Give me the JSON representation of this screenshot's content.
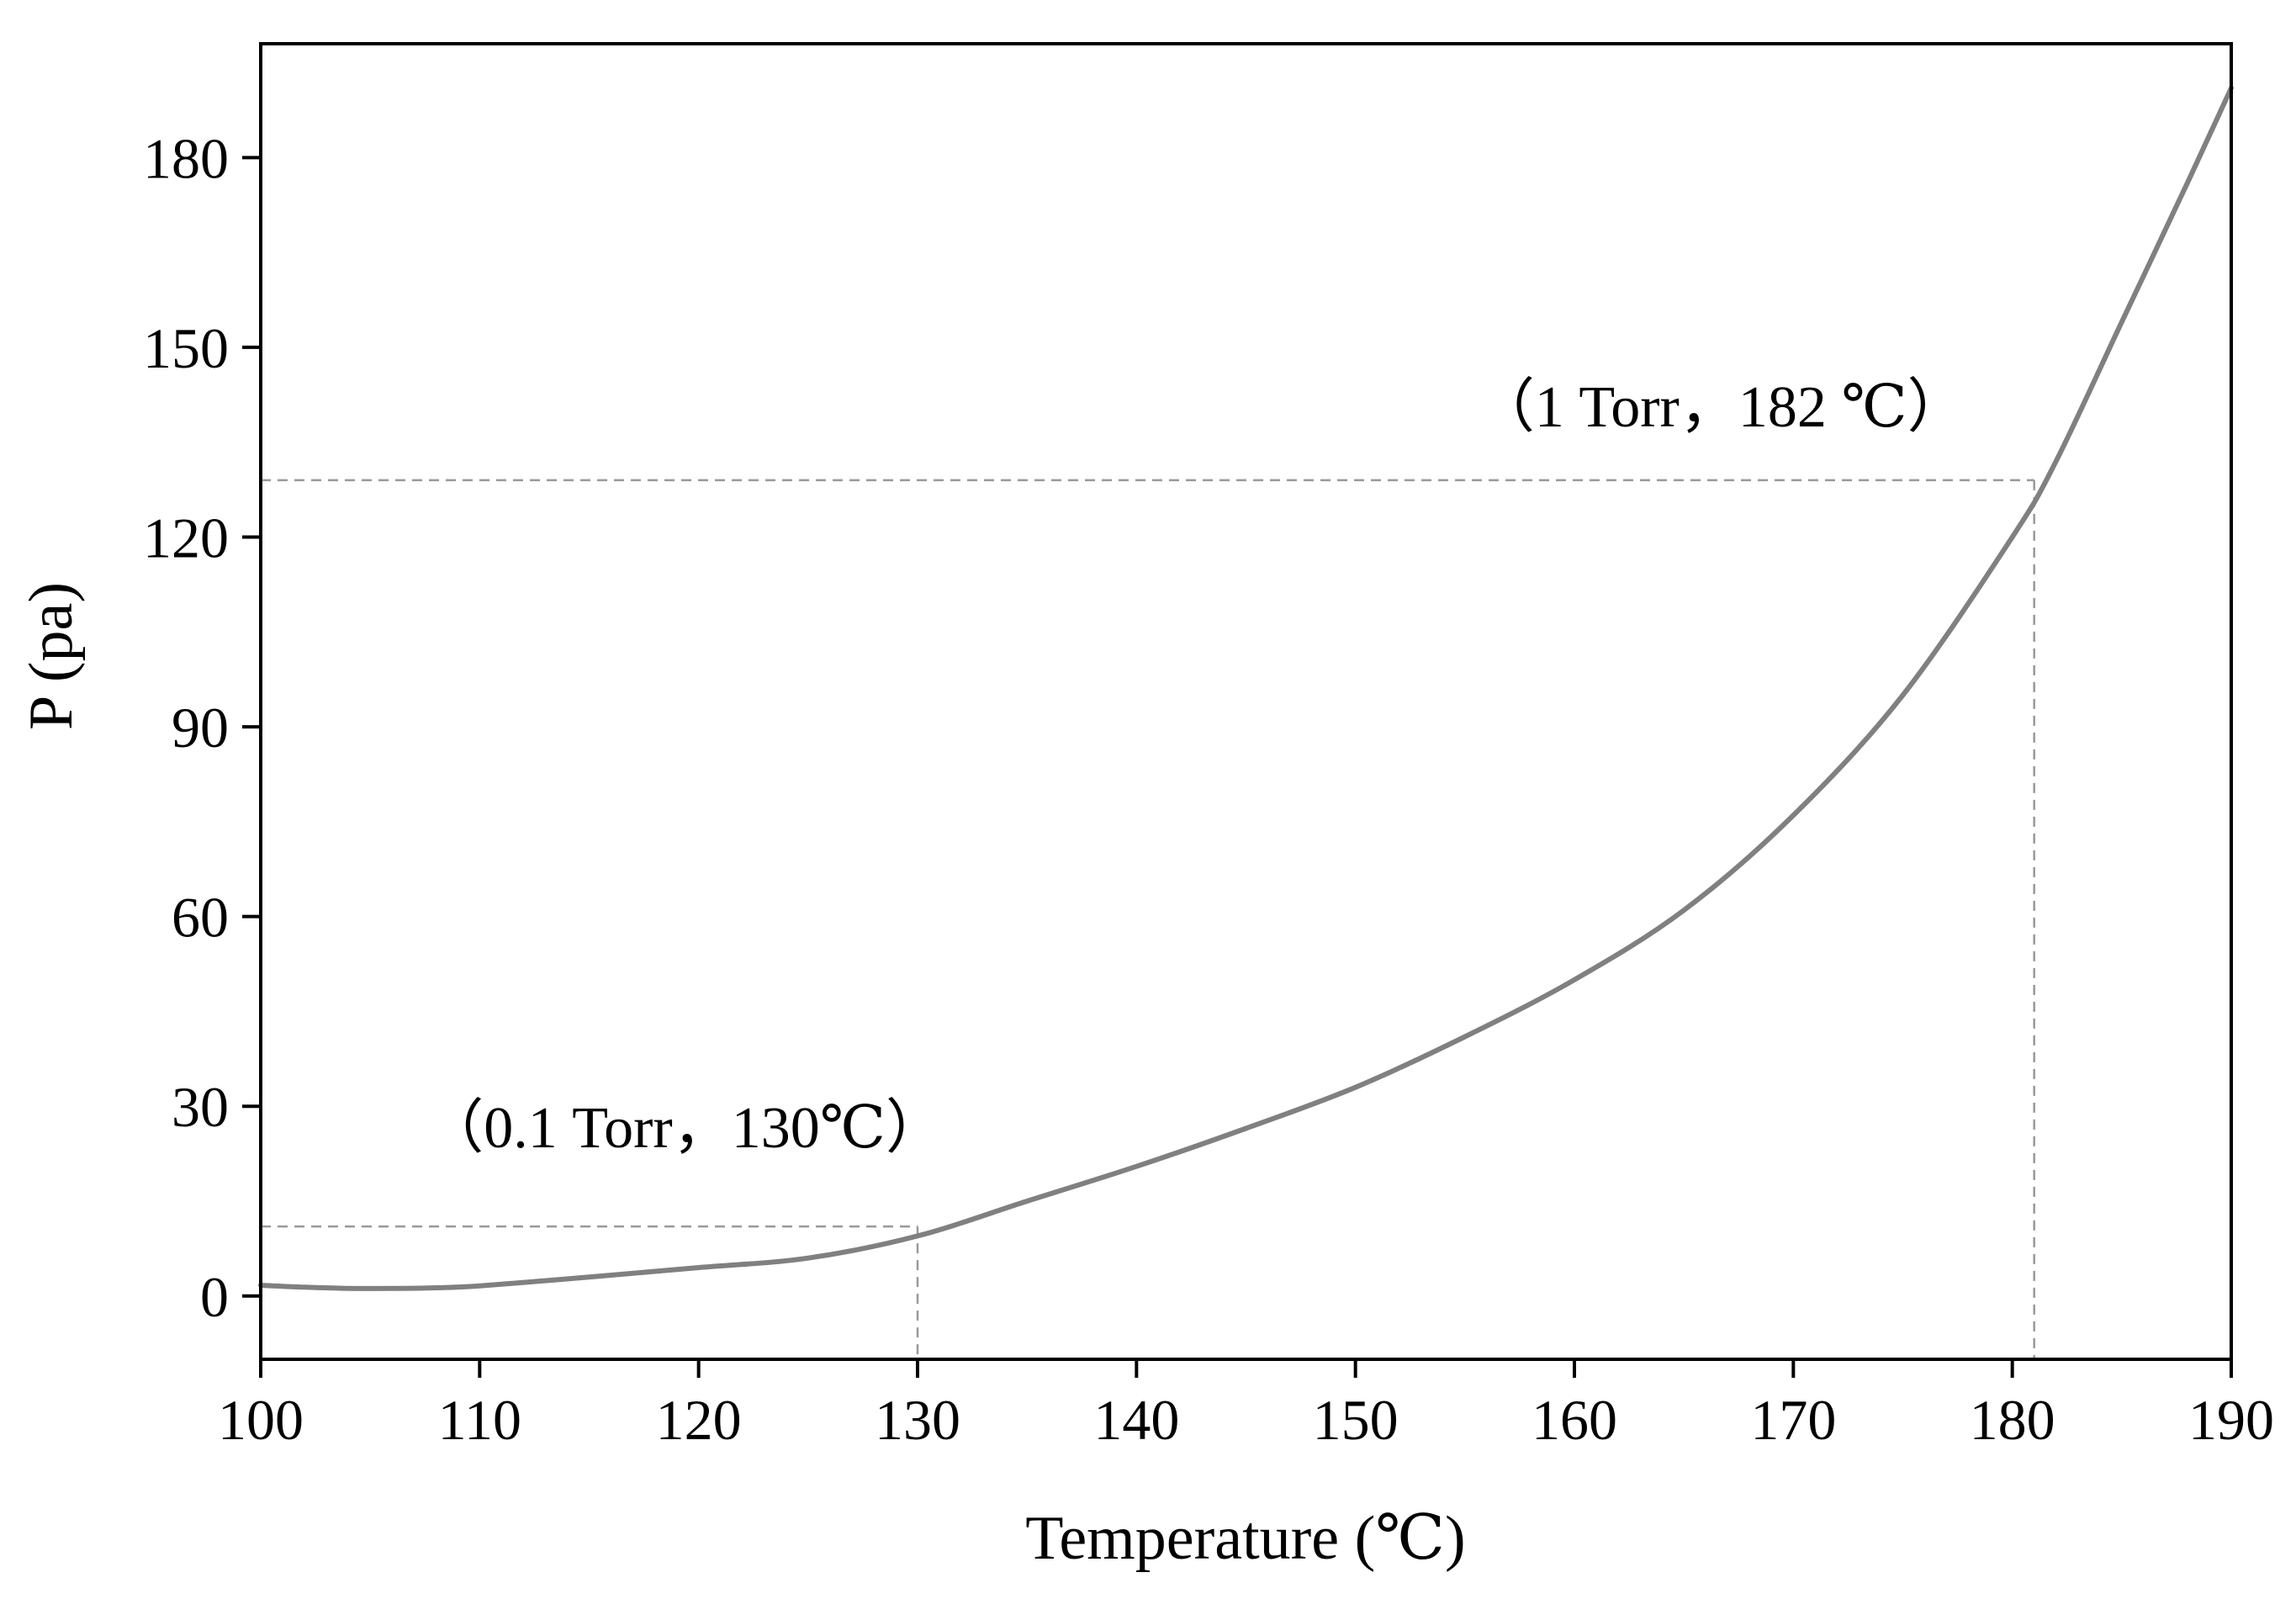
{
  "chart_data": {
    "type": "line",
    "xlabel": "Temperature (℃)",
    "ylabel": "P (pa)",
    "xlim": [
      100,
      190
    ],
    "ylim": [
      -10,
      198
    ],
    "xticks": [
      100,
      110,
      120,
      130,
      140,
      150,
      160,
      170,
      180,
      190
    ],
    "yticks": [
      0,
      30,
      60,
      90,
      120,
      150,
      180
    ],
    "grid": false,
    "series": [
      {
        "name": "P",
        "color": "#808080",
        "x": [
          100,
          102,
          104,
          106,
          108,
          110,
          115,
          120,
          125,
          130,
          135,
          140,
          145,
          150,
          155,
          160,
          165,
          170,
          175,
          180,
          182,
          185,
          188,
          190
        ],
        "y": [
          1.7,
          1.4,
          1.2,
          1.2,
          1.3,
          1.6,
          3.0,
          4.5,
          6.0,
          9.5,
          15,
          20.5,
          26.5,
          33,
          41,
          50,
          61,
          76,
          95,
          120,
          132,
          154,
          176,
          191
        ]
      }
    ],
    "reference_lines": [
      {
        "label": "（0.1 Torr，130℃）",
        "x": 130,
        "y": 11,
        "x_from": 100,
        "color": "#999999"
      },
      {
        "label": "（1 Torr，182 ℃）",
        "x": 181,
        "y": 129,
        "x_from": 100,
        "color": "#999999"
      }
    ],
    "annotations": [
      {
        "id": "low",
        "text": "（0.1 Torr，130℃）",
        "x": 107.5,
        "y": 23.5
      },
      {
        "id": "high",
        "text": "（1 Torr，182 ℃）",
        "x": 155.5,
        "y": 137.5
      }
    ]
  }
}
